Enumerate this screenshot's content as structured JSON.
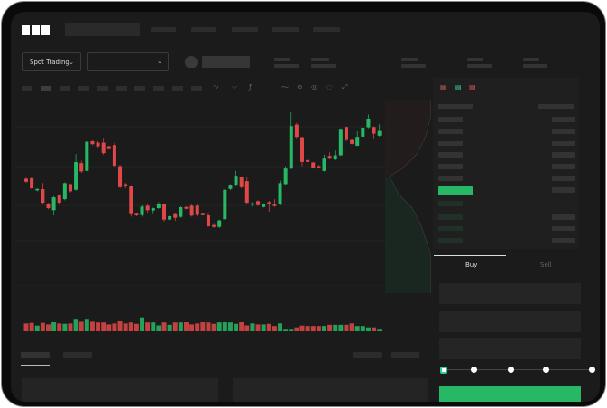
{
  "brand": {
    "logo": "OKX"
  },
  "toolbar": {
    "market_type": "Spot Trading",
    "pair_select": ""
  },
  "trade": {
    "tabs": [
      {
        "label": "Buy",
        "active": true
      },
      {
        "label": "Sell",
        "active": false
      }
    ],
    "leverage_steps": 5,
    "leverage_selected": 0
  },
  "colors": {
    "up": "#26b865",
    "down": "#e04848",
    "bg": "#1b1b1b"
  },
  "icons": [
    "chevron-down-icon",
    "orderbook-both-icon",
    "orderbook-bids-icon",
    "orderbook-asks-icon",
    "indicator-icon",
    "draw-line-icon",
    "pencil-icon",
    "settings-icon",
    "expand-icon"
  ],
  "chart_data": {
    "type": "candlestick",
    "title": "",
    "xlabel": "",
    "ylabel": "",
    "grid": true,
    "candles": [
      [
        42.5,
        43.5,
        39,
        40
      ],
      [
        43,
        44,
        33.5,
        34.5
      ],
      [
        32.8,
        34.5,
        32,
        34
      ],
      [
        33.8,
        38.8,
        21.5,
        22.5
      ],
      [
        21.3,
        22.5,
        17,
        18
      ],
      [
        16.3,
        28,
        12,
        27
      ],
      [
        28.8,
        29.5,
        21.5,
        22.5
      ],
      [
        25.5,
        39.5,
        24.5,
        38.8
      ],
      [
        38,
        38.5,
        31,
        32
      ],
      [
        33.3,
        63,
        32.5,
        56.3
      ],
      [
        55.5,
        57.5,
        47.5,
        48.5
      ],
      [
        49,
        83.8,
        48.5,
        73.3
      ],
      [
        74.5,
        75,
        70.5,
        71.3
      ],
      [
        72.5,
        74,
        68.5,
        69.5
      ],
      [
        72.5,
        76.5,
        62.5,
        63.8
      ],
      [
        69.5,
        70,
        67.5,
        68
      ],
      [
        70.5,
        72.5,
        52.5,
        53.3
      ],
      [
        53,
        54,
        34.5,
        35.5
      ],
      [
        38,
        39,
        34.5,
        36.5
      ],
      [
        36.3,
        37,
        11,
        13
      ],
      [
        13.3,
        14,
        11.5,
        12
      ],
      [
        12.3,
        20.5,
        11,
        19.3
      ],
      [
        20,
        22,
        14,
        16.3
      ],
      [
        16,
        18.5,
        13,
        18
      ],
      [
        18,
        23,
        17.5,
        21.3
      ],
      [
        21.3,
        22,
        6,
        8.5
      ],
      [
        8.5,
        12,
        7.5,
        11.3
      ],
      [
        13,
        14,
        7.5,
        10
      ],
      [
        10.8,
        19.5,
        10,
        18.8
      ],
      [
        19,
        19.5,
        17,
        17.5
      ],
      [
        20,
        21,
        11,
        11.8
      ],
      [
        20,
        21,
        11,
        12.5
      ],
      [
        13.3,
        13.8,
        12,
        12.5
      ],
      [
        12,
        14,
        2.5,
        3
      ],
      [
        4,
        5,
        1.5,
        2.5
      ],
      [
        2.5,
        8.5,
        1.5,
        7.8
      ],
      [
        8.8,
        37,
        7.5,
        33.3
      ],
      [
        34,
        38,
        33,
        37.5
      ],
      [
        37.5,
        49,
        36.5,
        45
      ],
      [
        43.8,
        44.5,
        34.5,
        35.5
      ],
      [
        40.5,
        44,
        21,
        22.5
      ],
      [
        20.8,
        23,
        19,
        22
      ],
      [
        23.8,
        24.5,
        19.8,
        20.5
      ],
      [
        19,
        22,
        18.5,
        21.8
      ],
      [
        23,
        24,
        15,
        22
      ],
      [
        21,
        25.5,
        19,
        19.8
      ],
      [
        21.5,
        41,
        20.5,
        38.8
      ],
      [
        38,
        53,
        37.5,
        51
      ],
      [
        51,
        98.3,
        50.5,
        86.3
      ],
      [
        87.5,
        89,
        76,
        77.3
      ],
      [
        77,
        77.5,
        53,
        56.5
      ],
      [
        58,
        59,
        56,
        56.5
      ],
      [
        56,
        56.5,
        51,
        51.8
      ],
      [
        53,
        54,
        51,
        51.5
      ],
      [
        49,
        62.5,
        48.5,
        60
      ],
      [
        61.5,
        64.5,
        59.5,
        60
      ],
      [
        58.8,
        66,
        58,
        62
      ],
      [
        62,
        84.5,
        61.5,
        84
      ],
      [
        85.5,
        86,
        74,
        75.5
      ],
      [
        75.5,
        76,
        71,
        71.5
      ],
      [
        70,
        82.5,
        69.5,
        77.3
      ],
      [
        77.5,
        87.5,
        77,
        85
      ],
      [
        85.3,
        96,
        84.5,
        92.5
      ],
      [
        85.5,
        86,
        76,
        80
      ],
      [
        78.3,
        88,
        77.5,
        83
      ]
    ],
    "volumes": [
      35,
      38,
      24,
      38,
      30,
      45,
      35,
      33,
      35,
      58,
      48,
      58,
      48,
      40,
      40,
      30,
      35,
      50,
      35,
      40,
      33,
      65,
      40,
      40,
      25,
      40,
      28,
      40,
      40,
      44,
      30,
      35,
      44,
      40,
      33,
      40,
      45,
      40,
      33,
      44,
      25,
      35,
      30,
      30,
      33,
      22,
      35,
      8,
      8,
      15,
      24,
      22,
      22,
      22,
      22,
      28,
      28,
      28,
      28,
      35,
      22,
      22,
      15,
      15,
      8
    ]
  }
}
